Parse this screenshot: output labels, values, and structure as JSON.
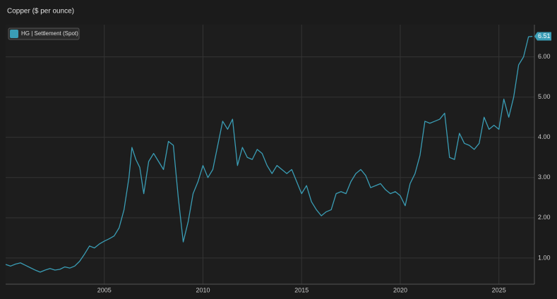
{
  "chart_data": {
    "type": "line",
    "title": "Copper ($ per ounce)",
    "x": [
      2000.0,
      2000.25,
      2000.5,
      2000.75,
      2001.0,
      2001.25,
      2001.5,
      2001.75,
      2002.0,
      2002.25,
      2002.5,
      2002.75,
      2003.0,
      2003.25,
      2003.5,
      2003.75,
      2004.0,
      2004.25,
      2004.5,
      2004.75,
      2005.0,
      2005.25,
      2005.5,
      2005.75,
      2006.0,
      2006.25,
      2006.4,
      2006.6,
      2006.8,
      2007.0,
      2007.25,
      2007.5,
      2007.75,
      2008.0,
      2008.25,
      2008.5,
      2008.75,
      2009.0,
      2009.25,
      2009.5,
      2009.75,
      2010.0,
      2010.25,
      2010.5,
      2010.75,
      2011.0,
      2011.25,
      2011.5,
      2011.75,
      2012.0,
      2012.25,
      2012.5,
      2012.75,
      2013.0,
      2013.25,
      2013.5,
      2013.75,
      2014.0,
      2014.25,
      2014.5,
      2014.75,
      2015.0,
      2015.25,
      2015.5,
      2015.75,
      2016.0,
      2016.25,
      2016.5,
      2016.75,
      2017.0,
      2017.25,
      2017.5,
      2017.75,
      2018.0,
      2018.25,
      2018.5,
      2018.75,
      2019.0,
      2019.25,
      2019.5,
      2019.75,
      2020.0,
      2020.25,
      2020.5,
      2020.75,
      2021.0,
      2021.25,
      2021.5,
      2021.75,
      2022.0,
      2022.25,
      2022.5,
      2022.75,
      2023.0,
      2023.25,
      2023.5,
      2023.75,
      2024.0,
      2024.25,
      2024.5,
      2024.75,
      2025.0,
      2025.25,
      2025.5,
      2025.75,
      2026.0,
      2026.25,
      2026.5,
      2026.7
    ],
    "series": [
      {
        "name": "HG | Settlement (Spot)",
        "color": "#3a9db5",
        "values": [
          0.84,
          0.8,
          0.85,
          0.88,
          0.82,
          0.76,
          0.7,
          0.65,
          0.7,
          0.74,
          0.7,
          0.72,
          0.78,
          0.75,
          0.8,
          0.92,
          1.1,
          1.3,
          1.25,
          1.35,
          1.42,
          1.48,
          1.55,
          1.75,
          2.2,
          3.0,
          3.75,
          3.45,
          3.25,
          2.6,
          3.4,
          3.6,
          3.4,
          3.2,
          3.9,
          3.8,
          2.5,
          1.4,
          1.9,
          2.6,
          2.9,
          3.3,
          3.0,
          3.2,
          3.8,
          4.4,
          4.2,
          4.45,
          3.3,
          3.75,
          3.5,
          3.45,
          3.7,
          3.6,
          3.3,
          3.1,
          3.3,
          3.2,
          3.1,
          3.2,
          2.9,
          2.6,
          2.8,
          2.4,
          2.2,
          2.05,
          2.15,
          2.2,
          2.6,
          2.65,
          2.6,
          2.9,
          3.1,
          3.2,
          3.05,
          2.75,
          2.8,
          2.85,
          2.7,
          2.6,
          2.65,
          2.55,
          2.3,
          2.85,
          3.1,
          3.55,
          4.4,
          4.35,
          4.4,
          4.45,
          4.6,
          3.5,
          3.45,
          4.1,
          3.85,
          3.8,
          3.7,
          3.85,
          4.5,
          4.2,
          4.3,
          4.2,
          4.95,
          4.5,
          5.0,
          5.8,
          6.0,
          6.5,
          6.51
        ]
      }
    ],
    "xlim": [
      2000.0,
      2026.8
    ],
    "xticks": [
      2005,
      2010,
      2015,
      2020,
      2025
    ],
    "ylim": [
      0.35,
      6.8
    ],
    "yticks": [
      {
        "value": 1,
        "label": "1.00"
      },
      {
        "value": 2,
        "label": "2.00"
      },
      {
        "value": 3,
        "label": "3.00"
      },
      {
        "value": 4,
        "label": "4.00"
      },
      {
        "value": 5,
        "label": "5.00"
      },
      {
        "value": 6,
        "label": "6.00"
      }
    ],
    "grid": true,
    "legend": "top-left"
  }
}
